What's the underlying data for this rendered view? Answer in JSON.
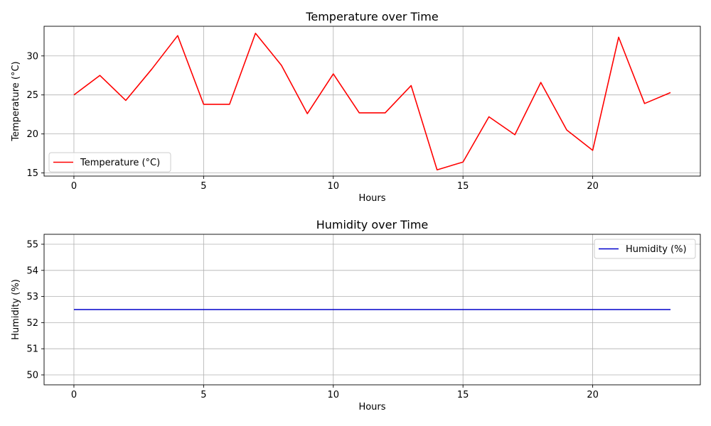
{
  "chart_data": [
    {
      "type": "line",
      "title": "Temperature over Time",
      "xlabel": "Hours",
      "ylabel": "Temperature (°C)",
      "xlim": [
        -1.15,
        24.15
      ],
      "ylim": [
        14.6,
        33.8
      ],
      "xticks": [
        0,
        5,
        10,
        15,
        20
      ],
      "yticks": [
        15,
        20,
        25,
        30
      ],
      "grid": true,
      "legend_position": "lower-left",
      "x": [
        0,
        1,
        2,
        3,
        4,
        5,
        6,
        7,
        8,
        9,
        10,
        11,
        12,
        13,
        14,
        15,
        16,
        17,
        18,
        19,
        20,
        21,
        22,
        23
      ],
      "series": [
        {
          "name": "Temperature (°C)",
          "color": "#ff0000",
          "values": [
            25.0,
            27.5,
            24.3,
            28.3,
            32.6,
            23.8,
            23.8,
            32.9,
            28.8,
            22.6,
            27.7,
            22.7,
            22.7,
            26.2,
            15.4,
            16.4,
            22.2,
            19.9,
            26.6,
            20.5,
            17.9,
            32.4,
            23.9,
            25.3
          ]
        }
      ]
    },
    {
      "type": "line",
      "title": "Humidity over Time",
      "xlabel": "Hours",
      "ylabel": "Humidity (%)",
      "xlim": [
        -1.15,
        24.15
      ],
      "ylim": [
        49.62,
        55.38
      ],
      "xticks": [
        0,
        5,
        10,
        15,
        20
      ],
      "yticks": [
        50,
        51,
        52,
        53,
        54,
        55
      ],
      "grid": true,
      "legend_position": "upper-right",
      "x": [
        0,
        1,
        2,
        3,
        4,
        5,
        6,
        7,
        8,
        9,
        10,
        11,
        12,
        13,
        14,
        15,
        16,
        17,
        18,
        19,
        20,
        21,
        22,
        23
      ],
      "series": [
        {
          "name": "Humidity (%)",
          "color": "#0000cc",
          "values": [
            52.5,
            52.5,
            52.5,
            52.5,
            52.5,
            52.5,
            52.5,
            52.5,
            52.5,
            52.5,
            52.5,
            52.5,
            52.5,
            52.5,
            52.5,
            52.5,
            52.5,
            52.5,
            52.5,
            52.5,
            52.5,
            52.5,
            52.5,
            52.5
          ]
        }
      ]
    }
  ]
}
